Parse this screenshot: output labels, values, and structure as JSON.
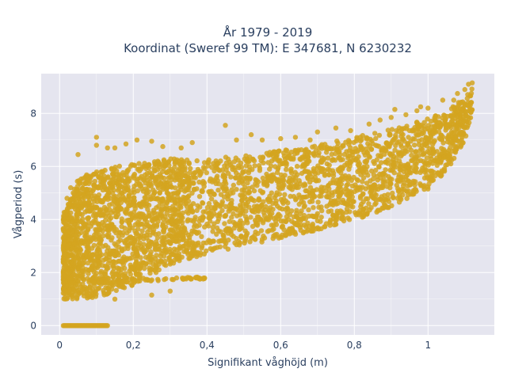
{
  "colors": {
    "plot_background": "#E5E5EF",
    "gridline": "#FFFFFF",
    "marker": "#D4A420",
    "text": "#2A3F5F"
  },
  "chart_data": {
    "type": "scatter",
    "title_line1": "År 1979 - 2019",
    "title_line2": "Koordinat (Sweref 99 TM): E 347681, N 6230232",
    "xlabel": "Signifikant våghöjd (m)",
    "ylabel": "Vågperiod (s)",
    "xlim": [
      -0.05,
      1.18
    ],
    "ylim": [
      -0.35,
      9.5
    ],
    "xticks": [
      0,
      0.2,
      0.4,
      0.6,
      0.8,
      1
    ],
    "xtick_labels": [
      "0",
      "0,2",
      "0,4",
      "0,6",
      "0,8",
      "1"
    ],
    "yticks": [
      0,
      2,
      4,
      6,
      8
    ],
    "ytick_labels": [
      "0",
      "2",
      "4",
      "6",
      "8"
    ],
    "grid": true,
    "legend": "none",
    "density_envelope": {
      "x": [
        0.01,
        0.05,
        0.1,
        0.2,
        0.3,
        0.4,
        0.5,
        0.6,
        0.7,
        0.8,
        0.9,
        1.0,
        1.05,
        1.1,
        1.12
      ],
      "y_low": [
        1.0,
        1.0,
        1.05,
        1.5,
        2.3,
        2.7,
        3.0,
        3.3,
        3.6,
        4.0,
        4.4,
        5.2,
        5.8,
        7.0,
        8.0
      ],
      "y_high": [
        4.2,
        5.5,
        5.9,
        6.1,
        6.3,
        6.3,
        6.4,
        6.6,
        6.8,
        7.1,
        7.4,
        7.8,
        8.1,
        8.6,
        9.0
      ]
    },
    "zero_period_points": {
      "x_from": 0.01,
      "x_to": 0.13,
      "y": 0
    },
    "low_period_tail": {
      "x": [
        0.1,
        0.2,
        0.3,
        0.4
      ],
      "y": [
        1.6,
        1.7,
        1.75,
        1.8
      ]
    },
    "outliers": [
      {
        "x": 0.05,
        "y": 6.45
      },
      {
        "x": 0.1,
        "y": 6.8
      },
      {
        "x": 0.1,
        "y": 7.1
      },
      {
        "x": 0.13,
        "y": 6.7
      },
      {
        "x": 0.15,
        "y": 6.7
      },
      {
        "x": 0.18,
        "y": 6.85
      },
      {
        "x": 0.21,
        "y": 7.0
      },
      {
        "x": 0.25,
        "y": 6.95
      },
      {
        "x": 0.28,
        "y": 6.75
      },
      {
        "x": 0.33,
        "y": 6.7
      },
      {
        "x": 0.36,
        "y": 6.9
      },
      {
        "x": 0.45,
        "y": 7.55
      },
      {
        "x": 0.48,
        "y": 7.0
      },
      {
        "x": 0.52,
        "y": 7.2
      },
      {
        "x": 0.55,
        "y": 7.0
      },
      {
        "x": 0.6,
        "y": 7.05
      },
      {
        "x": 0.64,
        "y": 7.1
      },
      {
        "x": 0.68,
        "y": 7.0
      },
      {
        "x": 0.7,
        "y": 7.3
      },
      {
        "x": 0.75,
        "y": 7.45
      },
      {
        "x": 0.79,
        "y": 7.35
      },
      {
        "x": 0.84,
        "y": 7.6
      },
      {
        "x": 0.87,
        "y": 7.75
      },
      {
        "x": 0.9,
        "y": 7.85
      },
      {
        "x": 0.91,
        "y": 8.15
      },
      {
        "x": 0.94,
        "y": 7.95
      },
      {
        "x": 0.97,
        "y": 8.1
      },
      {
        "x": 0.98,
        "y": 8.25
      },
      {
        "x": 1.0,
        "y": 8.2
      },
      {
        "x": 1.02,
        "y": 7.9
      },
      {
        "x": 1.04,
        "y": 8.5
      },
      {
        "x": 1.07,
        "y": 8.5
      },
      {
        "x": 1.08,
        "y": 8.75
      },
      {
        "x": 1.1,
        "y": 8.9
      },
      {
        "x": 1.11,
        "y": 9.1
      },
      {
        "x": 1.12,
        "y": 9.15
      },
      {
        "x": 0.25,
        "y": 1.15
      },
      {
        "x": 0.3,
        "y": 1.3
      },
      {
        "x": 0.15,
        "y": 1.0
      },
      {
        "x": 0.88,
        "y": 5.5
      },
      {
        "x": 0.95,
        "y": 5.3
      },
      {
        "x": 1.0,
        "y": 5.15
      },
      {
        "x": 0.78,
        "y": 4.4
      },
      {
        "x": 0.7,
        "y": 3.95
      },
      {
        "x": 0.62,
        "y": 3.55
      },
      {
        "x": 0.55,
        "y": 3.25
      },
      {
        "x": 0.48,
        "y": 3.05
      },
      {
        "x": 0.01,
        "y": 3.3
      },
      {
        "x": 0.01,
        "y": 2.5
      },
      {
        "x": 0.02,
        "y": 4.8
      },
      {
        "x": 0.03,
        "y": 5.2
      }
    ]
  }
}
